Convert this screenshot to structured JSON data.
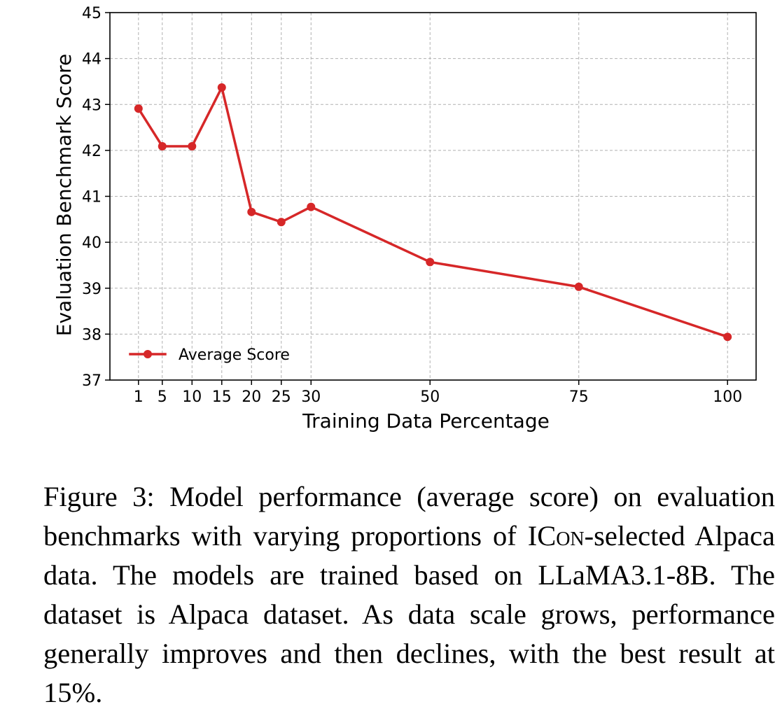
{
  "chart_data": {
    "type": "line",
    "title": "",
    "xlabel": "Training Data Percentage",
    "ylabel": "Evaluation Benchmark Score",
    "x": [
      1,
      5,
      10,
      15,
      20,
      25,
      30,
      50,
      75,
      100
    ],
    "xticks": [
      1,
      5,
      10,
      15,
      20,
      25,
      30,
      50,
      75,
      100
    ],
    "yticks": [
      37,
      38,
      39,
      40,
      41,
      42,
      43,
      44,
      45
    ],
    "xlim": [
      -3.8,
      104.8
    ],
    "ylim": [
      37,
      45
    ],
    "grid": true,
    "legend_position": "lower-left",
    "series": [
      {
        "name": "Average Score",
        "color": "#d62728",
        "marker": "circle",
        "values": [
          42.91,
          42.09,
          42.09,
          43.37,
          40.66,
          40.44,
          40.77,
          39.57,
          39.03,
          37.94
        ]
      }
    ]
  },
  "caption": {
    "label": "Figure 3:",
    "text_before": " Model performance (average score) on evaluation benchmarks with varying proportions of I",
    "smallcaps": "Con",
    "text_after": "-selected Alpaca data. The models are trained based on LLaMA3.1-8B. The dataset is Alpaca dataset. As data scale grows, performance generally improves and then declines, with the best result at 15%."
  }
}
